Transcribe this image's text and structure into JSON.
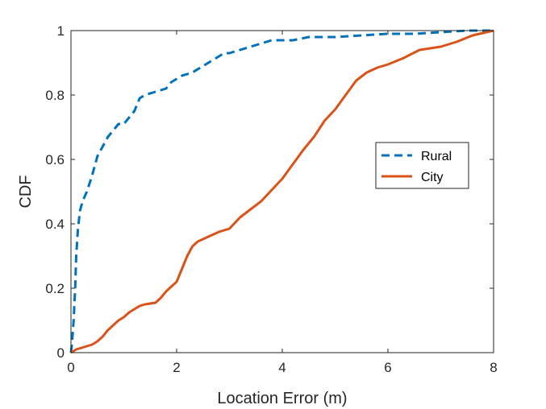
{
  "chart_data": {
    "type": "line",
    "title": "",
    "xlabel": "Location Error (m)",
    "ylabel": "CDF",
    "xlim": [
      0,
      8
    ],
    "ylim": [
      0,
      1
    ],
    "xticks": [
      0,
      2,
      4,
      6,
      8
    ],
    "yticks": [
      0,
      0.2,
      0.4,
      0.6,
      0.8,
      1
    ],
    "xtick_labels": [
      "0",
      "2",
      "4",
      "6",
      "8"
    ],
    "ytick_labels": [
      "0",
      "0.2",
      "0.4",
      "0.6",
      "0.8",
      "1"
    ],
    "grid": false,
    "legend_position": "right-middle",
    "series": [
      {
        "name": "Rural",
        "color": "#0072BD",
        "style": "dashed",
        "x": [
          0,
          0.02,
          0.05,
          0.08,
          0.1,
          0.13,
          0.17,
          0.22,
          0.3,
          0.4,
          0.5,
          0.6,
          0.7,
          0.8,
          0.9,
          1.0,
          1.1,
          1.2,
          1.3,
          1.4,
          1.6,
          1.8,
          1.9,
          2.0,
          2.1,
          2.3,
          2.5,
          2.7,
          2.9,
          3.0,
          3.2,
          3.4,
          3.6,
          3.8,
          3.9,
          4.2,
          4.5,
          5.0,
          5.5,
          6.0,
          6.5,
          7.0,
          7.5,
          8.0
        ],
        "y": [
          0,
          0.03,
          0.1,
          0.2,
          0.3,
          0.38,
          0.44,
          0.47,
          0.5,
          0.55,
          0.61,
          0.64,
          0.67,
          0.69,
          0.71,
          0.71,
          0.73,
          0.75,
          0.79,
          0.8,
          0.81,
          0.82,
          0.84,
          0.85,
          0.86,
          0.87,
          0.89,
          0.91,
          0.93,
          0.93,
          0.94,
          0.95,
          0.96,
          0.97,
          0.97,
          0.97,
          0.98,
          0.98,
          0.985,
          0.99,
          0.99,
          0.995,
          1.0,
          1.0
        ]
      },
      {
        "name": "City",
        "color": "#D95319",
        "style": "solid",
        "x": [
          0,
          0.1,
          0.2,
          0.3,
          0.4,
          0.5,
          0.6,
          0.7,
          0.8,
          0.9,
          1.0,
          1.1,
          1.2,
          1.3,
          1.4,
          1.6,
          1.7,
          1.8,
          1.9,
          2.0,
          2.05,
          2.1,
          2.2,
          2.3,
          2.4,
          2.6,
          2.8,
          3.0,
          3.2,
          3.4,
          3.6,
          3.8,
          4.0,
          4.2,
          4.4,
          4.6,
          4.8,
          5.0,
          5.2,
          5.4,
          5.6,
          5.8,
          6.0,
          6.3,
          6.6,
          7.0,
          7.3,
          7.6,
          8.0
        ],
        "y": [
          0,
          0.01,
          0.015,
          0.02,
          0.025,
          0.035,
          0.05,
          0.07,
          0.085,
          0.1,
          0.11,
          0.125,
          0.135,
          0.145,
          0.15,
          0.155,
          0.17,
          0.19,
          0.205,
          0.22,
          0.24,
          0.26,
          0.3,
          0.33,
          0.345,
          0.36,
          0.375,
          0.385,
          0.42,
          0.445,
          0.47,
          0.505,
          0.54,
          0.585,
          0.63,
          0.67,
          0.72,
          0.755,
          0.8,
          0.845,
          0.87,
          0.885,
          0.895,
          0.915,
          0.94,
          0.95,
          0.965,
          0.985,
          1.0
        ]
      }
    ]
  }
}
